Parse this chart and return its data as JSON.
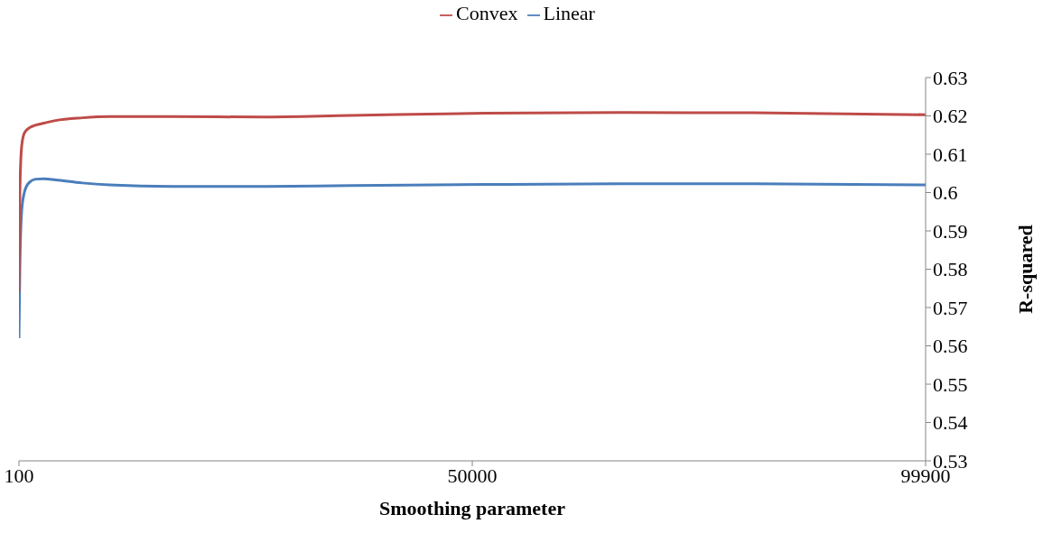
{
  "chart_data": {
    "type": "line",
    "xlabel": "Smoothing parameter",
    "ylabel": "R-squared",
    "x": [
      100,
      198,
      395,
      690,
      1183,
      1970,
      2856,
      4135,
      7088,
      10040,
      16930,
      26770,
      36610,
      51380,
      66140,
      80900,
      99900
    ],
    "series": [
      {
        "name": "Linear",
        "color": "#4a7ebb",
        "values": [
          0.562,
          0.58,
          0.595,
          0.6,
          0.6025,
          0.6035,
          0.6036,
          0.6033,
          0.6025,
          0.602,
          0.6016,
          0.6016,
          0.6018,
          0.6021,
          0.6023,
          0.6023,
          0.602
        ]
      },
      {
        "name": "Convex",
        "color": "#be4b48",
        "values": [
          0.574,
          0.6,
          0.612,
          0.6155,
          0.6168,
          0.6176,
          0.6181,
          0.6188,
          0.6195,
          0.6198,
          0.6198,
          0.6197,
          0.6201,
          0.6207,
          0.6209,
          0.6208,
          0.6203
        ]
      }
    ],
    "xlim": [
      100,
      99900
    ],
    "xticks": [
      100,
      50000,
      99900
    ],
    "ylim": [
      0.53,
      0.63
    ],
    "yticks": [
      0.53,
      0.54,
      0.55,
      0.56,
      0.57,
      0.58,
      0.59,
      0.6,
      0.61,
      0.62,
      0.63
    ],
    "legend": "top",
    "grid": false,
    "marker": "none",
    "line_style": "solid"
  }
}
